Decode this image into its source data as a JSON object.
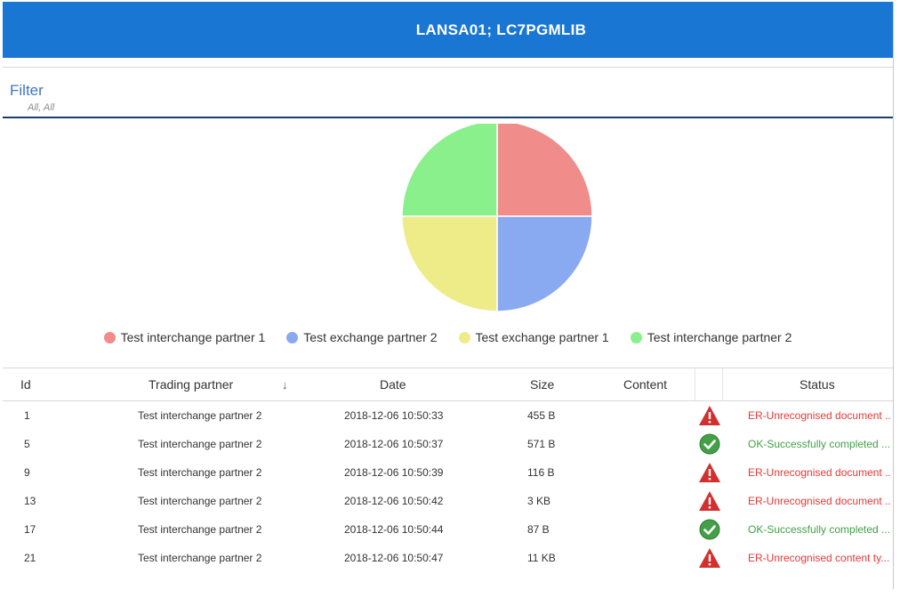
{
  "header": {
    "title": "LANSA01; LC7PGMLIB"
  },
  "filter": {
    "label": "Filter",
    "summary": "All, All"
  },
  "chart_data": {
    "type": "pie",
    "categories": [
      "Test interchange partner 1",
      "Test exchange partner 2",
      "Test exchange partner 1",
      "Test interchange partner 2"
    ],
    "values": [
      25,
      25,
      25,
      25
    ],
    "colors": [
      "#f08c89",
      "#89a9f0",
      "#eeec89",
      "#89f08b"
    ],
    "legend_position": "bottom"
  },
  "table": {
    "columns": {
      "id": "Id",
      "trading_partner": "Trading partner",
      "date": "Date",
      "size": "Size",
      "content": "Content",
      "status": "Status"
    },
    "sort_icon": "arrow-down-icon",
    "rows": [
      {
        "id": "1",
        "partner": "Test interchange partner 2",
        "date": "2018-12-06 10:50:33",
        "size": "455 B",
        "icon": "warning-icon",
        "status": "ER-Unrecognised document ..."
      },
      {
        "id": "5",
        "partner": "Test interchange partner 2",
        "date": "2018-12-06 10:50:37",
        "size": "571 B",
        "icon": "check-circle-icon",
        "status": "OK-Successfully completed ..."
      },
      {
        "id": "9",
        "partner": "Test interchange partner 2",
        "date": "2018-12-06 10:50:39",
        "size": "116 B",
        "icon": "warning-icon",
        "status": "ER-Unrecognised document ..."
      },
      {
        "id": "13",
        "partner": "Test interchange partner 2",
        "date": "2018-12-06 10:50:42",
        "size": "3 KB",
        "icon": "warning-icon",
        "status": "ER-Unrecognised document ..."
      },
      {
        "id": "17",
        "partner": "Test interchange partner 2",
        "date": "2018-12-06 10:50:44",
        "size": "87 B",
        "icon": "check-circle-icon",
        "status": "OK-Successfully completed ..."
      },
      {
        "id": "21",
        "partner": "Test interchange partner 2",
        "date": "2018-12-06 10:50:47",
        "size": "11 KB",
        "icon": "warning-icon",
        "status": "ER-Unrecognised content ty..."
      }
    ]
  }
}
